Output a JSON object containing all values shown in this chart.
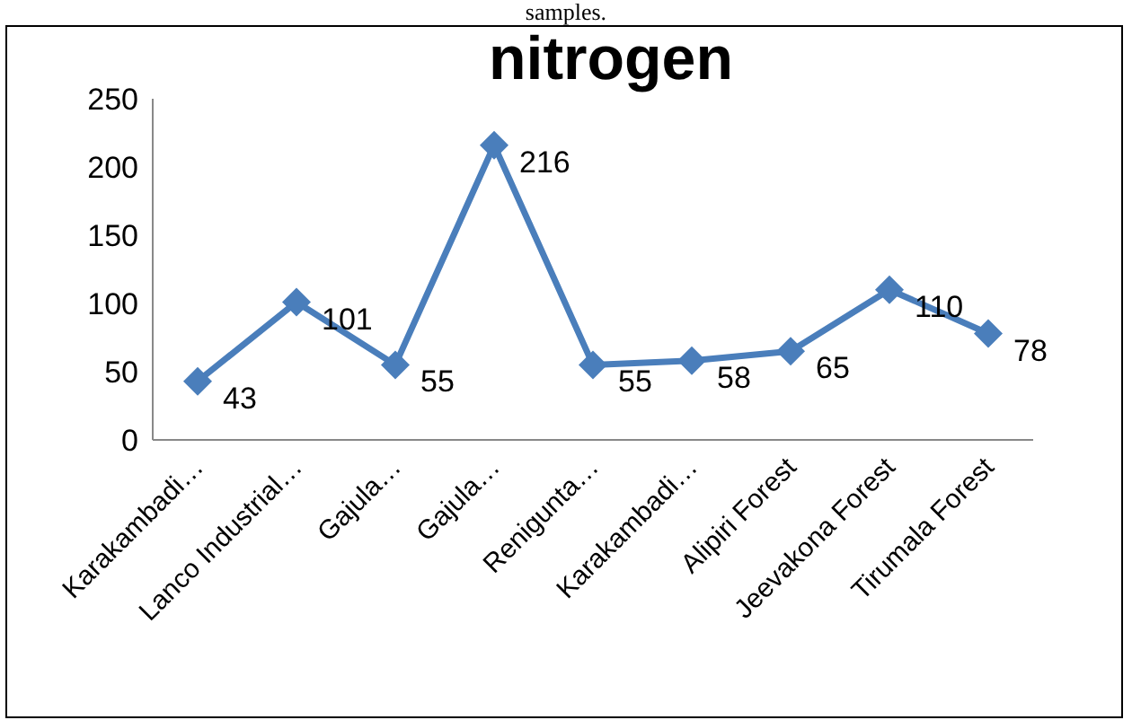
{
  "chart_data": {
    "type": "line",
    "title": "nitrogen",
    "annotations": [
      "samples."
    ],
    "categories": [
      "Karakambadi…",
      "Lanco Industrial…",
      "Gajula…",
      "Gajula…",
      "Renigunta…",
      "Karakambadi…",
      "Alipiri Forest",
      "Jeevakona Forest",
      "Tirumala Forest"
    ],
    "series": [
      {
        "color": "#4a7ebb",
        "values": [
          43,
          101,
          55,
          216,
          55,
          58,
          65,
          110,
          78
        ]
      }
    ],
    "ylim": [
      0,
      250
    ],
    "yticks": [
      0,
      50,
      100,
      150,
      200,
      250
    ],
    "grid": false,
    "marker": "diamond",
    "line_style": "solid",
    "data_labels": true
  }
}
